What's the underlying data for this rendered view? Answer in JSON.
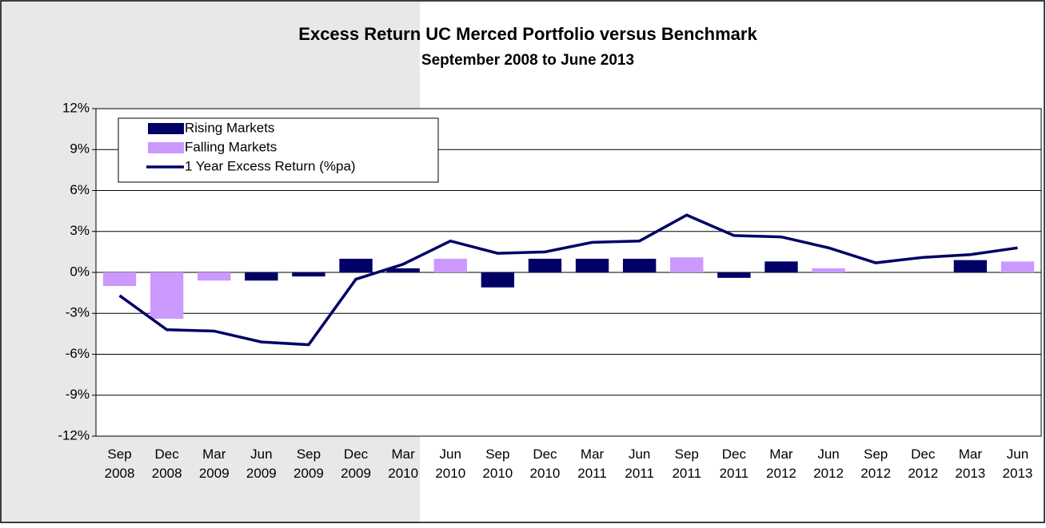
{
  "chart_data": {
    "type": "bar",
    "title": "Excess Return UC Merced Portfolio versus Benchmark",
    "subtitle": "September 2008 to June 2013",
    "categories": [
      "Sep 2008",
      "Dec 2008",
      "Mar 2009",
      "Jun 2009",
      "Sep 2009",
      "Dec 2009",
      "Mar 2010",
      "Jun 2010",
      "Sep 2010",
      "Dec 2010",
      "Mar 2011",
      "Jun 2011",
      "Sep 2011",
      "Dec 2011",
      "Mar 2012",
      "Jun 2012",
      "Sep 2012",
      "Dec 2012",
      "Mar 2013",
      "Jun 2013"
    ],
    "series": [
      {
        "name": "Rising Markets",
        "type": "bar",
        "color": "#000066",
        "values": [
          null,
          null,
          null,
          -0.6,
          -0.3,
          1.0,
          0.3,
          null,
          -1.1,
          1.0,
          1.0,
          1.0,
          null,
          -0.4,
          0.8,
          null,
          null,
          null,
          0.9,
          null
        ]
      },
      {
        "name": "Falling Markets",
        "type": "bar",
        "color": "#cc99ff",
        "values": [
          -1.0,
          -3.4,
          -0.6,
          null,
          null,
          null,
          null,
          1.0,
          null,
          null,
          null,
          null,
          1.1,
          null,
          null,
          0.3,
          null,
          null,
          null,
          0.8
        ]
      },
      {
        "name": "1 Year Excess Return (%pa)",
        "type": "line",
        "color": "#000066",
        "values": [
          -1.7,
          -4.2,
          -4.3,
          -5.1,
          -5.3,
          -0.5,
          0.6,
          2.3,
          1.4,
          1.5,
          2.2,
          2.3,
          4.2,
          2.7,
          2.6,
          1.8,
          0.7,
          1.1,
          1.3,
          1.8
        ]
      }
    ],
    "ylim": [
      -12,
      12
    ],
    "yticks": [
      {
        "value": -12,
        "label": "-12%"
      },
      {
        "value": -9,
        "label": "-9%"
      },
      {
        "value": -6,
        "label": "-6%"
      },
      {
        "value": -3,
        "label": "-3%"
      },
      {
        "value": 0,
        "label": "0%"
      },
      {
        "value": 3,
        "label": "3%"
      },
      {
        "value": 6,
        "label": "6%"
      },
      {
        "value": 9,
        "label": "9%"
      },
      {
        "value": 12,
        "label": "12%"
      }
    ],
    "grid": true
  }
}
